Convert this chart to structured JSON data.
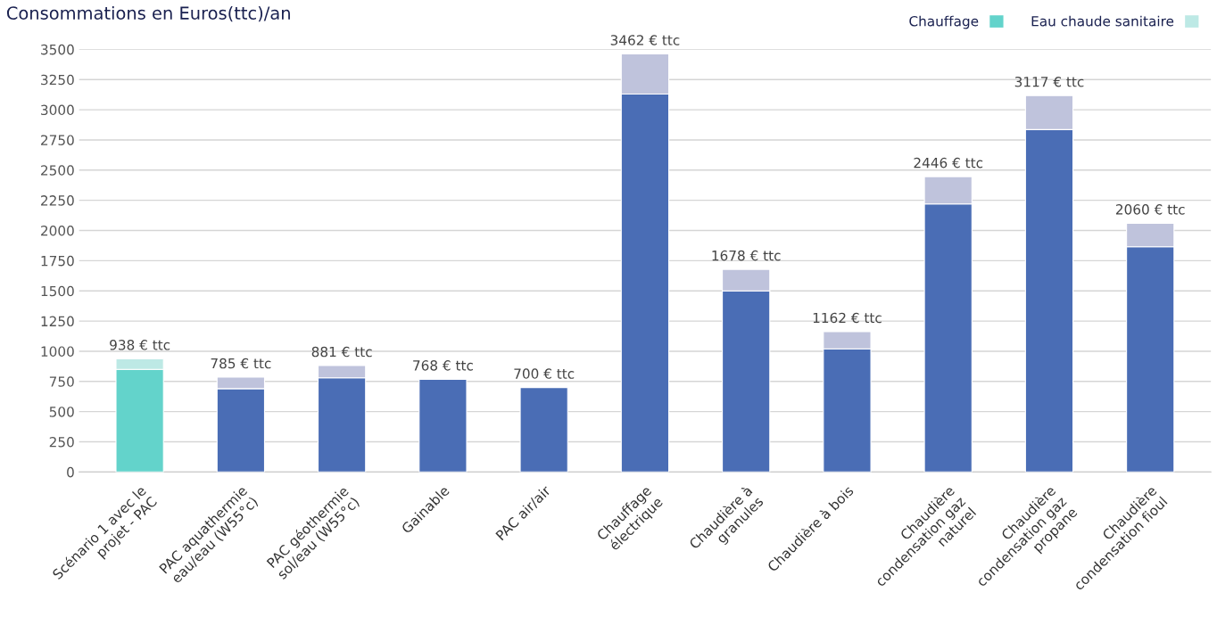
{
  "chart_data": {
    "type": "bar",
    "stacked": true,
    "title": "Consommations en Euros(ttc)/an",
    "categories": [
      "Scénario 1 avec le\nprojet - PAC",
      "PAC aquathermie\neau/eau (W55°c)",
      "PAC géothermie\nsol/eau (W55°c)",
      "Gainable",
      "PAC air/air",
      "Chauffage\nélectrique",
      "Chaudière à\ngranules",
      "Chaudière à bois",
      "Chaudière\ncondensation gaz\nnaturel",
      "Chaudière\ncondensation gaz\npropane",
      "Chaudière\ncondensation fioul"
    ],
    "series": [
      {
        "name": "Chauffage",
        "color": "#63d3cb",
        "colors": [
          "#63d3cb",
          "#4a6db5",
          "#4a6db5",
          "#4a6db5",
          "#4a6db5",
          "#4a6db5",
          "#4a6db5",
          "#4a6db5",
          "#4a6db5",
          "#4a6db5",
          "#4a6db5"
        ],
        "values": [
          850,
          690,
          780,
          768,
          700,
          3130,
          1500,
          1020,
          2220,
          2835,
          1865
        ]
      },
      {
        "name": "Eau chaude sanitaire",
        "color": "#bde9e5",
        "colors": [
          "#bde9e5",
          "#bfc3dc",
          "#bfc3dc",
          "#bfc3dc",
          "#bfc3dc",
          "#bfc3dc",
          "#bfc3dc",
          "#bfc3dc",
          "#bfc3dc",
          "#bfc3dc",
          "#bfc3dc"
        ],
        "values": [
          88,
          95,
          101,
          null,
          null,
          332,
          178,
          142,
          226,
          282,
          195
        ]
      }
    ],
    "totals": [
      "938 € ttc",
      "785 € ttc",
      "881 € ttc",
      "768 € ttc",
      "700 € ttc",
      "3462 € ttc",
      "1678 € ttc",
      "1162 € ttc",
      "2446 € ttc",
      "3117 € ttc",
      "2060 € ttc"
    ],
    "ylim": [
      0,
      3500
    ],
    "yticks": [
      0,
      250,
      500,
      750,
      1000,
      1250,
      1500,
      1750,
      2000,
      2250,
      2500,
      2750,
      3000,
      3250,
      3500
    ],
    "grid": "y",
    "legend": "top right"
  }
}
